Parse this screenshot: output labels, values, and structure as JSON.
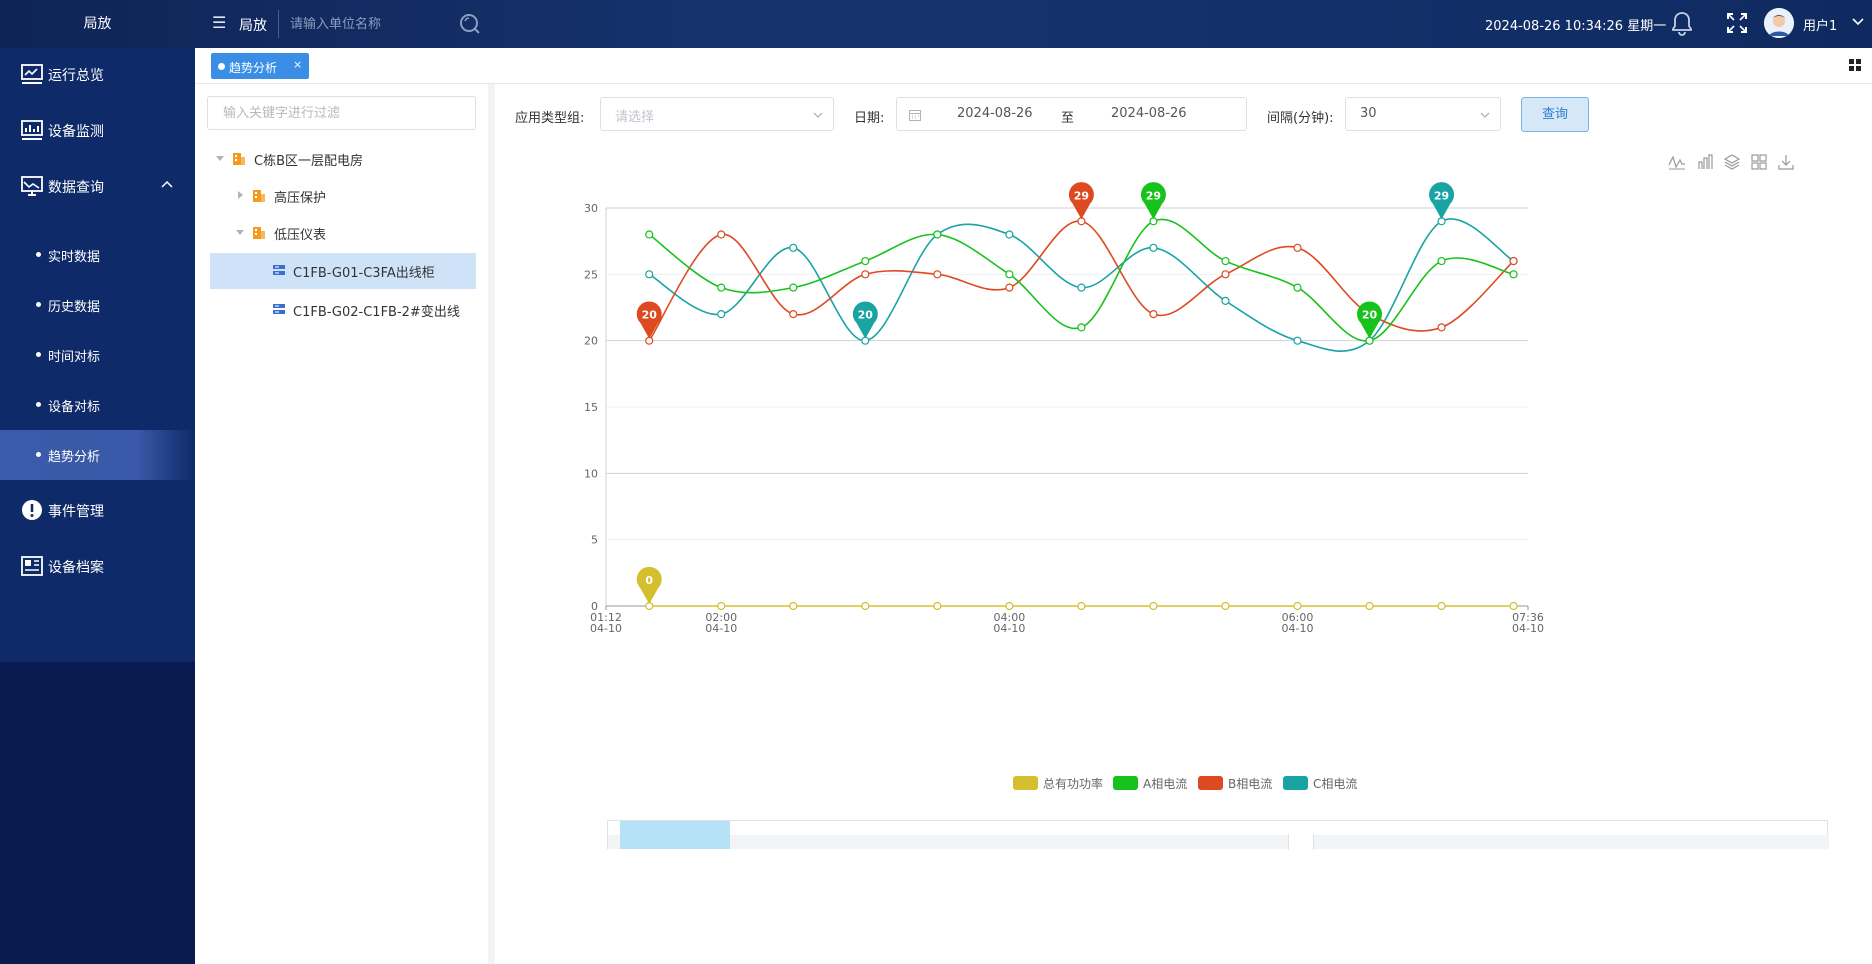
{
  "header": {
    "brand": "局放",
    "menu_toggle_label": "局放",
    "search_placeholder": "请输入单位名称",
    "datetime": "2024-08-26 10:34:26 星期一",
    "username": "用户1"
  },
  "sidebar": {
    "items": [
      {
        "label": "运行总览",
        "icon": "monitor-chart-icon"
      },
      {
        "label": "设备监测",
        "icon": "monitor-bars-icon"
      },
      {
        "label": "数据查询",
        "icon": "monitor-trend-icon",
        "expanded": true
      },
      {
        "label": "事件管理",
        "icon": "alert-icon"
      },
      {
        "label": "设备档案",
        "icon": "archive-icon"
      }
    ],
    "subitems": [
      {
        "label": "实时数据"
      },
      {
        "label": "历史数据"
      },
      {
        "label": "时间对标"
      },
      {
        "label": "设备对标"
      },
      {
        "label": "趋势分析",
        "active": true
      }
    ]
  },
  "tabs": [
    {
      "label": "趋势分析",
      "close": "×"
    }
  ],
  "tree": {
    "filter_placeholder": "输入关键字进行过滤",
    "nodes": [
      {
        "label": "C栋B区一层配电房"
      },
      {
        "label": "高压保护"
      },
      {
        "label": "低压仪表"
      },
      {
        "label": "C1FB-G01-C3FA出线柜",
        "selected": true
      },
      {
        "label": "C1FB-G02-C1FB-2#变出线"
      }
    ]
  },
  "form": {
    "app_type_label": "应用类型组:",
    "app_type_placeholder": "请选择",
    "date_label": "日期:",
    "date_start": "2024-08-26",
    "date_sep": "至",
    "date_end": "2024-08-26",
    "interval_label": "间隔(分钟):",
    "interval_value": "30",
    "query_button": "查询"
  },
  "chart_data": {
    "type": "line",
    "x": [
      "01:30",
      "02:00",
      "02:30",
      "03:00",
      "03:30",
      "04:00",
      "04:30",
      "05:00",
      "05:30",
      "06:00",
      "06:30",
      "07:00",
      "07:30"
    ],
    "x_axis_ticks": [
      {
        "time": "01:12",
        "date": "04-10"
      },
      {
        "time": "02:00",
        "date": "04-10"
      },
      {
        "time": "04:00",
        "date": "04-10"
      },
      {
        "time": "06:00",
        "date": "04-10"
      },
      {
        "time": "07:36",
        "date": "04-10"
      }
    ],
    "ylim": [
      0,
      30
    ],
    "y_ticks": [
      0,
      5,
      10,
      15,
      20,
      25,
      30
    ],
    "legend_position": "bottom-center",
    "series": [
      {
        "name": "总有功功率",
        "color": "#d4c02f",
        "values": [
          0,
          0,
          0,
          0,
          0,
          0,
          0,
          0,
          0,
          0,
          0,
          0,
          0
        ],
        "marks": [
          {
            "index": 0,
            "label": "0"
          }
        ]
      },
      {
        "name": "A相电流",
        "color": "#17c21c",
        "values": [
          28,
          24,
          24,
          26,
          28,
          25,
          21,
          29,
          26,
          24,
          20,
          26,
          25
        ],
        "marks": [
          {
            "index": 7,
            "label": "29"
          },
          {
            "index": 10,
            "label": "20"
          }
        ]
      },
      {
        "name": "B相电流",
        "color": "#dd4a22",
        "values": [
          20,
          28,
          22,
          25,
          25,
          24,
          29,
          22,
          25,
          27,
          22,
          21,
          26
        ],
        "marks": [
          {
            "index": 0,
            "label": "20"
          },
          {
            "index": 6,
            "label": "29"
          }
        ]
      },
      {
        "name": "C相电流",
        "color": "#1aa3a3",
        "values": [
          25,
          22,
          27,
          20,
          28,
          28,
          24,
          27,
          23,
          20,
          20,
          29,
          26
        ],
        "marks": [
          {
            "index": 3,
            "label": "20"
          },
          {
            "index": 11,
            "label": "29"
          }
        ]
      }
    ]
  }
}
